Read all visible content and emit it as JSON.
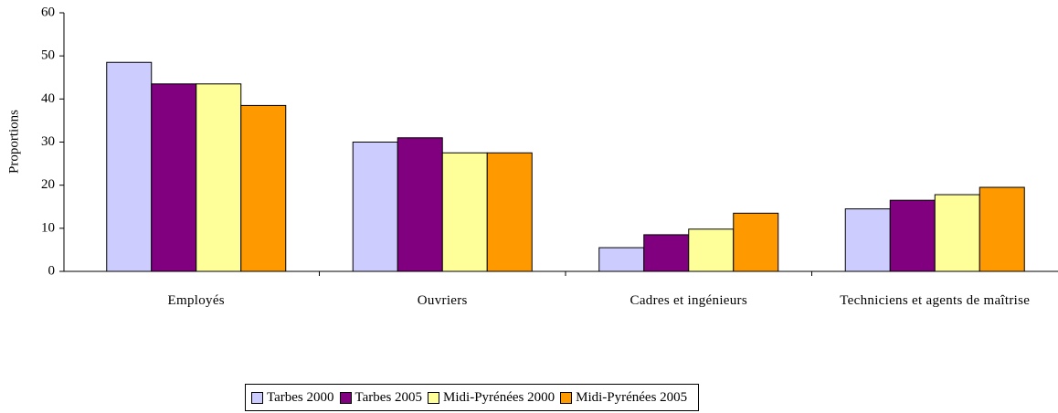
{
  "chart_data": {
    "type": "bar",
    "ylabel": "Proportions",
    "categories": [
      "Employés",
      "Ouvriers",
      "Cadres et ingénieurs",
      "Techniciens et agents de maîtrise"
    ],
    "series": [
      {
        "name": "Tarbes 2000",
        "color": "#ccccff",
        "values": [
          48.5,
          30,
          5.5,
          14.5
        ]
      },
      {
        "name": "Tarbes 2005",
        "color": "#800080",
        "values": [
          43.5,
          31,
          8.5,
          16.5
        ]
      },
      {
        "name": "Midi-Pyrénées 2000",
        "color": "#ffff99",
        "values": [
          43.5,
          27.5,
          9.8,
          17.8
        ]
      },
      {
        "name": "Midi-Pyrénées 2005",
        "color": "#ff9900",
        "values": [
          38.5,
          27.5,
          13.5,
          19.5
        ]
      }
    ],
    "ylim": [
      0,
      60
    ],
    "yticks": [
      0,
      10,
      20,
      30,
      40,
      50,
      60
    ],
    "grid": false,
    "legend": "bottom"
  }
}
